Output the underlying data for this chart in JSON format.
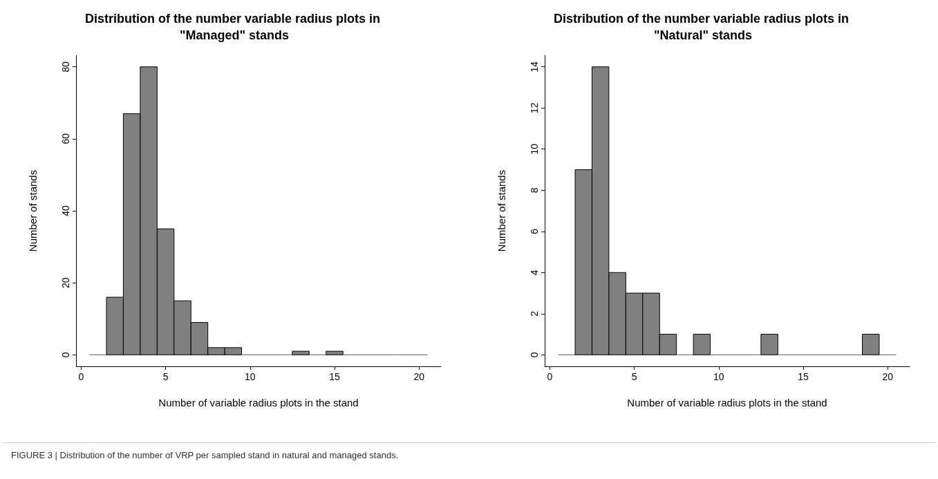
{
  "chart_data": [
    {
      "type": "histogram",
      "title": "Distribution of the number variable radius plots in \"Managed\" stands",
      "xlabel": "Number of variable radius plots in the stand",
      "ylabel": "Number of stands",
      "color": "#808080",
      "bins": [
        0.5,
        1.5,
        2.5,
        3.5,
        4.5,
        5.5,
        6.5,
        7.5,
        8.5,
        9.5,
        10.5,
        11.5,
        12.5,
        13.5,
        14.5,
        15.5,
        16.5,
        17.5,
        18.5,
        19.5,
        20.5
      ],
      "values": [
        0,
        16,
        67,
        80,
        35,
        15,
        9,
        2,
        2,
        0,
        0,
        0,
        1,
        0,
        1,
        0,
        0,
        0,
        0,
        0
      ],
      "xlim": [
        -0.3,
        21.3
      ],
      "xticks": [
        0,
        5,
        10,
        15,
        20
      ],
      "ylim": [
        -3.2,
        83.2
      ],
      "yticks": [
        0,
        20,
        40,
        60,
        80
      ],
      "grid": false,
      "annotations": [
        "FIGURE 3 | Distribution of the number of VRP per sampled stand in natural and managed stands."
      ]
    },
    {
      "type": "histogram",
      "title": "Distribution of the number variable radius plots in \"Natural\" stands",
      "xlabel": "Number of variable radius plots in the stand",
      "ylabel": "Number of stands",
      "color": "#808080",
      "bins": [
        0.5,
        1.5,
        2.5,
        3.5,
        4.5,
        5.5,
        6.5,
        7.5,
        8.5,
        9.5,
        10.5,
        11.5,
        12.5,
        13.5,
        14.5,
        15.5,
        16.5,
        17.5,
        18.5,
        19.5,
        20.5
      ],
      "values": [
        0,
        9,
        14,
        4,
        3,
        3,
        1,
        0,
        1,
        0,
        0,
        0,
        1,
        0,
        0,
        0,
        0,
        0,
        1,
        0
      ],
      "xlim": [
        -0.3,
        21.3
      ],
      "xticks": [
        0,
        5,
        10,
        15,
        20
      ],
      "ylim": [
        -0.56,
        14.56
      ],
      "yticks": [
        0,
        2,
        4,
        6,
        8,
        10,
        12,
        14
      ],
      "grid": false
    }
  ]
}
